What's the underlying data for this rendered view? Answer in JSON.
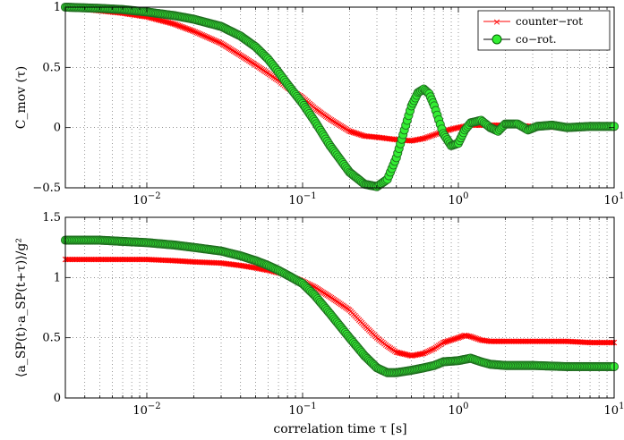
{
  "chart_data": [
    {
      "type": "line",
      "xscale": "log",
      "xlim": [
        0.003,
        10
      ],
      "ylim": [
        -0.5,
        1
      ],
      "ylabel": "C_mov (τ)",
      "xlabel": "",
      "grid": true,
      "legend_position": "top-right",
      "xticks": [
        {
          "value": 0.01,
          "base": "10",
          "exp": "−2"
        },
        {
          "value": 0.1,
          "base": "10",
          "exp": "−1"
        },
        {
          "value": 1,
          "base": "10",
          "exp": "0"
        },
        {
          "value": 10,
          "base": "10",
          "exp": "1"
        }
      ],
      "yticks": [
        {
          "value": -0.5,
          "label": "−0.5"
        },
        {
          "value": 0,
          "label": "0"
        },
        {
          "value": 0.5,
          "label": "0.5"
        },
        {
          "value": 1,
          "label": "1"
        }
      ],
      "series": [
        {
          "name": "counter−rot",
          "color": "#ff0000",
          "marker": "x",
          "x": [
            0.003,
            0.005,
            0.007,
            0.01,
            0.015,
            0.02,
            0.03,
            0.04,
            0.05,
            0.06,
            0.07,
            0.08,
            0.1,
            0.12,
            0.15,
            0.2,
            0.25,
            0.3,
            0.4,
            0.5,
            0.6,
            0.7,
            0.8,
            1.0,
            1.2,
            1.5,
            2,
            3,
            5,
            7,
            10
          ],
          "y": [
            1.0,
            0.97,
            0.95,
            0.92,
            0.86,
            0.8,
            0.7,
            0.6,
            0.52,
            0.45,
            0.39,
            0.33,
            0.25,
            0.16,
            0.07,
            -0.03,
            -0.07,
            -0.08,
            -0.1,
            -0.11,
            -0.09,
            -0.06,
            -0.03,
            0.0,
            0.02,
            0.02,
            0.02,
            0.01,
            0.0,
            0.01,
            0.0
          ]
        },
        {
          "name": "co−rot.",
          "color": "#00dd00",
          "marker": "o",
          "x": [
            0.003,
            0.005,
            0.007,
            0.01,
            0.015,
            0.02,
            0.03,
            0.04,
            0.05,
            0.06,
            0.07,
            0.08,
            0.1,
            0.12,
            0.15,
            0.2,
            0.25,
            0.3,
            0.35,
            0.4,
            0.45,
            0.5,
            0.55,
            0.6,
            0.65,
            0.7,
            0.8,
            0.9,
            1.0,
            1.1,
            1.2,
            1.4,
            1.6,
            1.8,
            2.0,
            2.4,
            2.8,
            3.2,
            4,
            5,
            7,
            10
          ],
          "y": [
            1.0,
            0.99,
            0.98,
            0.96,
            0.93,
            0.9,
            0.84,
            0.76,
            0.67,
            0.57,
            0.46,
            0.36,
            0.2,
            0.05,
            -0.15,
            -0.37,
            -0.47,
            -0.49,
            -0.43,
            -0.25,
            -0.02,
            0.18,
            0.29,
            0.32,
            0.28,
            0.18,
            -0.05,
            -0.15,
            -0.13,
            -0.02,
            0.04,
            0.06,
            0.0,
            -0.03,
            0.03,
            0.03,
            -0.02,
            0.01,
            0.02,
            0.0,
            0.01,
            0.01
          ]
        }
      ]
    },
    {
      "type": "line",
      "xscale": "log",
      "xlim": [
        0.003,
        10
      ],
      "ylim": [
        0,
        1.5
      ],
      "ylabel": "⟨a_SP(t)·a_SP(t+τ)⟩/g²",
      "xlabel": "correlation time τ [s]",
      "grid": true,
      "xticks": [
        {
          "value": 0.01,
          "base": "10",
          "exp": "−2"
        },
        {
          "value": 0.1,
          "base": "10",
          "exp": "−1"
        },
        {
          "value": 1,
          "base": "10",
          "exp": "0"
        },
        {
          "value": 10,
          "base": "10",
          "exp": "1"
        }
      ],
      "yticks": [
        {
          "value": 0,
          "label": "0"
        },
        {
          "value": 0.5,
          "label": "0.5"
        },
        {
          "value": 1,
          "label": "1"
        },
        {
          "value": 1.5,
          "label": "1.5"
        }
      ],
      "series": [
        {
          "name": "counter−rot",
          "color": "#ff0000",
          "marker": "x",
          "x": [
            0.003,
            0.005,
            0.007,
            0.01,
            0.015,
            0.02,
            0.03,
            0.04,
            0.05,
            0.06,
            0.07,
            0.08,
            0.1,
            0.12,
            0.15,
            0.2,
            0.25,
            0.3,
            0.35,
            0.4,
            0.5,
            0.6,
            0.7,
            0.8,
            1.0,
            1.1,
            1.2,
            1.4,
            1.6,
            2,
            3,
            5,
            7,
            10
          ],
          "y": [
            1.15,
            1.15,
            1.15,
            1.15,
            1.14,
            1.13,
            1.12,
            1.1,
            1.08,
            1.06,
            1.04,
            1.02,
            0.97,
            0.92,
            0.84,
            0.73,
            0.6,
            0.5,
            0.43,
            0.38,
            0.35,
            0.37,
            0.41,
            0.46,
            0.5,
            0.52,
            0.51,
            0.48,
            0.47,
            0.47,
            0.47,
            0.47,
            0.46,
            0.46
          ]
        },
        {
          "name": "co−rot.",
          "color": "#00dd00",
          "marker": "o",
          "x": [
            0.003,
            0.005,
            0.007,
            0.01,
            0.015,
            0.02,
            0.03,
            0.04,
            0.05,
            0.06,
            0.07,
            0.08,
            0.1,
            0.12,
            0.15,
            0.2,
            0.25,
            0.3,
            0.35,
            0.4,
            0.5,
            0.6,
            0.7,
            0.8,
            1.0,
            1.2,
            1.4,
            1.6,
            2,
            3,
            5,
            7,
            10
          ],
          "y": [
            1.31,
            1.31,
            1.3,
            1.29,
            1.27,
            1.25,
            1.22,
            1.18,
            1.14,
            1.1,
            1.06,
            1.02,
            0.95,
            0.85,
            0.7,
            0.5,
            0.35,
            0.25,
            0.21,
            0.21,
            0.23,
            0.25,
            0.27,
            0.3,
            0.31,
            0.33,
            0.3,
            0.28,
            0.27,
            0.27,
            0.26,
            0.26,
            0.26
          ]
        }
      ]
    }
  ]
}
